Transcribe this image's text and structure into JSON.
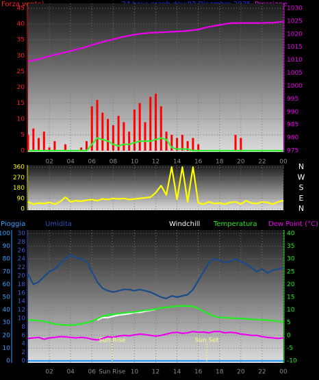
{
  "chart_data": [
    {
      "type": "line",
      "title": "24 hour graph day  03 Dicembre 2025",
      "ylabel": "Forza vento)",
      "y2label": "Pressione",
      "x": [
        0,
        0.5,
        1,
        1.5,
        2,
        2.5,
        3,
        3.5,
        4,
        4.5,
        5,
        5.5,
        6,
        6.5,
        7,
        7.5,
        8,
        8.5,
        9,
        9.5,
        10,
        10.5,
        11,
        11.5,
        12,
        12.5,
        13,
        13.5,
        14,
        14.5,
        15,
        15.5,
        16,
        16.5,
        17,
        17.5,
        18,
        18.5,
        19,
        19.5,
        20,
        20.5,
        21,
        21.5,
        22,
        22.5,
        23,
        23.5,
        24
      ],
      "xlim": [
        0,
        24
      ],
      "xticks": [
        {
          "value": 2,
          "label": "02"
        },
        {
          "value": 4,
          "label": "04"
        },
        {
          "value": 6,
          "label": "06"
        },
        {
          "value": 8,
          "label": "08"
        },
        10,
        12,
        14,
        16,
        18,
        20,
        22,
        {
          "value": 24,
          "label": "00"
        }
      ],
      "ylim": [
        0,
        45
      ],
      "yticks": [
        0,
        5,
        10,
        15,
        20,
        25,
        30,
        35,
        40,
        45
      ],
      "y2lim": [
        975,
        1030
      ],
      "y2ticks": [
        975,
        980,
        985,
        990,
        995,
        1000,
        1005,
        1010,
        1015,
        1020,
        1025,
        1030
      ],
      "grid": true,
      "series": [
        {
          "type": "bar",
          "color": "#ff0000",
          "values": [
            5,
            7,
            4,
            6,
            1,
            3,
            0,
            2,
            0,
            0,
            1,
            3,
            14,
            16,
            12,
            10,
            8,
            11,
            9,
            6,
            13,
            15,
            9,
            17,
            18,
            14,
            6,
            5,
            4,
            5,
            3,
            4,
            2,
            0,
            0,
            0,
            0,
            0,
            0,
            5,
            4,
            0,
            0,
            0,
            0,
            0,
            0,
            0,
            0
          ]
        },
        {
          "type": "line",
          "color": "#33ee33",
          "values": [
            0,
            0,
            0,
            0,
            0,
            0,
            0,
            0,
            0,
            0,
            0,
            0,
            2,
            4,
            3.5,
            3,
            2,
            1.5,
            2,
            2,
            2.5,
            3,
            3,
            3,
            3.5,
            4,
            3.5,
            1,
            0.5,
            0.5,
            0.5,
            0,
            0,
            0,
            0,
            0,
            0,
            0,
            0,
            0,
            0,
            0,
            0,
            0,
            0,
            0,
            0,
            0,
            0
          ]
        },
        {
          "type": "line",
          "axis": "y2",
          "color": "#ee00ee",
          "values": [
            1009.5,
            1009.9,
            1010.3,
            1010.9,
            1011.5,
            1012,
            1012.5,
            1013,
            1013.5,
            1014,
            1014.5,
            1015.1,
            1015.8,
            1016.4,
            1017,
            1017.5,
            1018,
            1018.5,
            1019,
            1019.4,
            1019.8,
            1020.1,
            1020.3,
            1020.5,
            1020.6,
            1020.7,
            1020.8,
            1020.9,
            1021,
            1021.1,
            1021.3,
            1021.5,
            1021.8,
            1022.3,
            1022.8,
            1023.2,
            1023.5,
            1023.9,
            1024.2,
            1024.3,
            1024.3,
            1024.3,
            1024.3,
            1024.3,
            1024.3,
            1024.4,
            1024.4,
            1024.6,
            1024.8
          ]
        }
      ]
    },
    {
      "type": "line",
      "x": [
        0,
        0.5,
        1,
        1.5,
        2,
        2.5,
        3,
        3.5,
        4,
        4.5,
        5,
        5.5,
        6,
        6.5,
        7,
        7.5,
        8,
        8.5,
        9,
        9.5,
        10,
        10.5,
        11,
        11.5,
        12,
        12.5,
        13,
        13.5,
        14,
        14.5,
        15,
        15.5,
        16,
        16.5,
        17,
        17.5,
        18,
        18.5,
        19,
        19.5,
        20,
        20.5,
        21,
        21.5,
        22,
        22.5,
        23,
        23.5,
        24
      ],
      "xlim": [
        0,
        24
      ],
      "ylim": [
        0,
        360
      ],
      "yticks": [
        360,
        270,
        180,
        90,
        0
      ],
      "compass": [
        "N",
        "W",
        "S",
        "E",
        "N"
      ],
      "grid": true,
      "series": [
        {
          "type": "line",
          "color": "#ffff00",
          "values": [
            60,
            40,
            50,
            45,
            55,
            40,
            60,
            100,
            60,
            70,
            65,
            75,
            80,
            70,
            85,
            80,
            90,
            85,
            90,
            80,
            85,
            90,
            95,
            100,
            140,
            200,
            120,
            360,
            80,
            360,
            60,
            360,
            50,
            40,
            60,
            45,
            50,
            40,
            55,
            60,
            40,
            70,
            50,
            45,
            60,
            55,
            40,
            60,
            70
          ]
        }
      ]
    },
    {
      "type": "line",
      "ylabel": "Pioggia",
      "y3label": "Umidita",
      "headers": [
        "Windchill",
        "Temperatura",
        "Dew Point (°C)"
      ],
      "x": [
        0,
        0.5,
        1,
        1.5,
        2,
        2.5,
        3,
        3.5,
        4,
        4.5,
        5,
        5.5,
        6,
        6.5,
        7,
        7.5,
        8,
        8.5,
        9,
        9.5,
        10,
        10.5,
        11,
        11.5,
        12,
        12.5,
        13,
        13.5,
        14,
        14.5,
        15,
        15.5,
        16,
        16.5,
        17,
        17.5,
        18,
        18.5,
        19,
        19.5,
        20,
        20.5,
        21,
        21.5,
        22,
        22.5,
        23,
        23.5,
        24
      ],
      "xlim": [
        0,
        24
      ],
      "xticks": [
        {
          "value": 2,
          "label": "02"
        },
        {
          "value": 4,
          "label": "04"
        },
        {
          "value": 6,
          "label": "06"
        },
        {
          "value": 7.9,
          "label": "Sun Rise"
        },
        10,
        12,
        14,
        16,
        18,
        20,
        22,
        {
          "value": 24,
          "label": "00"
        }
      ],
      "ylim": [
        0,
        100
      ],
      "yticks": [
        0,
        10,
        20,
        30,
        40,
        50,
        60,
        70,
        80,
        90,
        100
      ],
      "y3lim": [
        0,
        30
      ],
      "y3ticks": [
        0,
        2,
        4,
        6,
        8,
        10,
        12,
        14,
        16,
        18,
        20,
        22,
        24,
        26,
        28,
        30
      ],
      "y2lim": [
        -10,
        40
      ],
      "y2ticks": [
        -10,
        -5,
        0,
        5,
        10,
        15,
        20,
        25,
        30,
        35,
        40
      ],
      "grid": true,
      "annotations": [
        {
          "label": "Sun Rise",
          "x": 7.9
        },
        {
          "label": "Sun Set",
          "x": 16.8
        }
      ],
      "series": [
        {
          "type": "line",
          "color": "#1a4a8a",
          "values": [
            68,
            60,
            62,
            66,
            70,
            72,
            76,
            80,
            83,
            81,
            80,
            78,
            70,
            62,
            57,
            55,
            54,
            55,
            56,
            56,
            55,
            56,
            55,
            54,
            52,
            50,
            49,
            51,
            50,
            51,
            52,
            56,
            63,
            70,
            77,
            80,
            79,
            77,
            78,
            80,
            78,
            76,
            73,
            70,
            72,
            69,
            71,
            72,
            73
          ]
        },
        {
          "type": "line",
          "axis": "y2",
          "color": "#ffffff",
          "values": [
            null,
            null,
            null,
            null,
            null,
            null,
            null,
            null,
            null,
            null,
            null,
            null,
            null,
            6,
            7,
            7,
            7.5,
            8,
            8.2,
            8.5,
            9,
            9,
            9.5,
            9.8,
            10.2,
            null,
            null,
            null,
            null,
            null,
            null,
            null,
            null,
            null,
            null,
            null,
            null,
            null,
            null,
            null,
            null,
            null,
            null,
            null,
            null,
            null,
            null,
            null,
            null
          ]
        },
        {
          "type": "line",
          "axis": "y2",
          "color": "#22ee22",
          "values": [
            6,
            6,
            5.8,
            5.5,
            5,
            4.5,
            4.2,
            4,
            4,
            4.2,
            4.5,
            5,
            5.5,
            6.5,
            7.5,
            8,
            8.3,
            8.5,
            8.8,
            9,
            9.2,
            9.5,
            9.8,
            10,
            10.3,
            10.8,
            11,
            11.2,
            11.5,
            11.6,
            11.5,
            11.4,
            10.5,
            9.5,
            8.5,
            7.5,
            7,
            7,
            6.8,
            6.7,
            6.6,
            6.5,
            6.3,
            6.2,
            6.1,
            6,
            5.8,
            5.5,
            5.2
          ]
        },
        {
          "type": "line",
          "axis": "y2",
          "color": "#ee00ee",
          "values": [
            -1.2,
            -1,
            -0.8,
            -1.5,
            -1,
            -0.8,
            -0.5,
            -0.6,
            -0.8,
            -1,
            -0.8,
            -1,
            -1.5,
            -1.8,
            -1.2,
            -0.5,
            -0.8,
            -0.3,
            0,
            -0.2,
            0.2,
            0.5,
            0.3,
            0,
            -0.3,
            0,
            0.5,
            1,
            1.2,
            0.8,
            1,
            1.5,
            1.2,
            1.3,
            1,
            1.5,
            1.5,
            1,
            1.2,
            1,
            0.5,
            0.3,
            0,
            0,
            -0.5,
            -0.8,
            -1,
            -1.2,
            -1
          ]
        },
        {
          "type": "line",
          "color": "#2a9cff",
          "values": [
            0,
            0,
            0,
            0,
            0,
            0,
            0,
            0,
            0,
            0,
            0,
            0,
            0,
            0,
            0,
            0,
            0,
            0,
            0,
            0,
            0,
            0,
            0,
            0,
            0,
            0,
            0,
            0,
            0,
            0,
            0,
            0,
            0,
            0,
            0,
            0,
            0,
            0,
            0,
            0,
            0,
            0,
            0,
            0,
            0,
            0,
            0,
            0,
            0
          ]
        }
      ]
    }
  ]
}
